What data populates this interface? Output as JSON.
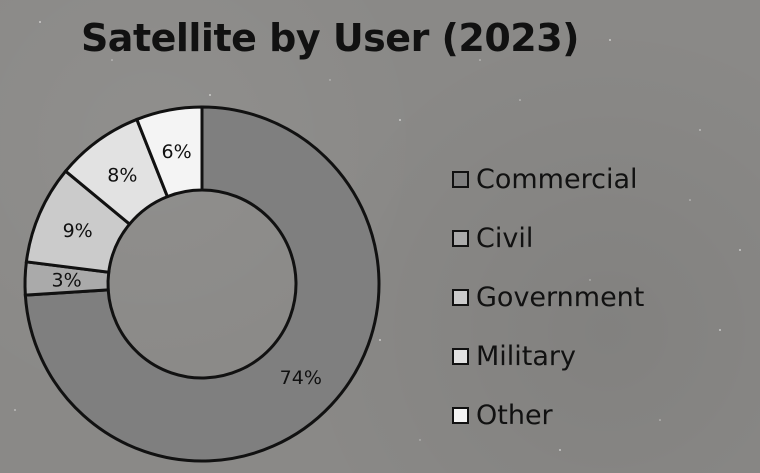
{
  "chart_data": {
    "type": "pie",
    "title": "Satellite by User (2023)",
    "categories": [
      "Commercial",
      "Civil",
      "Government",
      "Military",
      "Other"
    ],
    "values": [
      74,
      3,
      9,
      8,
      6
    ],
    "value_labels": [
      "74%",
      "3%",
      "9%",
      "8%",
      "6%"
    ],
    "donut": true,
    "legend_position": "right",
    "colors": {
      "Commercial": "#7f7f7f",
      "Civil": "#aaaaaa",
      "Government": "#cbcbcb",
      "Military": "#e2e2e2",
      "Other": "#f4f4f4"
    }
  }
}
